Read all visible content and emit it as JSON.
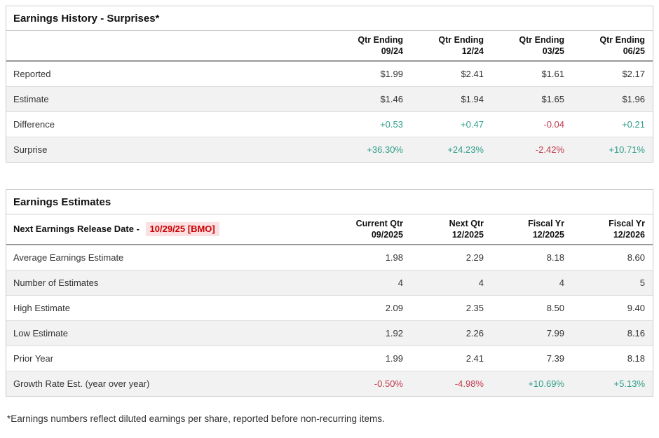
{
  "colors": {
    "positive": "#2f9e8a",
    "negative": "#c23b4f",
    "release_date_bg": "#fbe0e3",
    "release_date_color": "#cc0000",
    "border": "#cccccc",
    "zebra_row": "#f2f2f2",
    "header_rule": "#999999"
  },
  "history": {
    "title": "Earnings History - Surprises*",
    "columns": [
      {
        "line1": "Qtr Ending",
        "line2": "09/24"
      },
      {
        "line1": "Qtr Ending",
        "line2": "12/24"
      },
      {
        "line1": "Qtr Ending",
        "line2": "03/25"
      },
      {
        "line1": "Qtr Ending",
        "line2": "06/25"
      }
    ],
    "rows": [
      {
        "label": "Reported",
        "values": [
          {
            "text": "$1.99",
            "tone": "neutral"
          },
          {
            "text": "$2.41",
            "tone": "neutral"
          },
          {
            "text": "$1.61",
            "tone": "neutral"
          },
          {
            "text": "$2.17",
            "tone": "neutral"
          }
        ]
      },
      {
        "label": "Estimate",
        "values": [
          {
            "text": "$1.46",
            "tone": "neutral"
          },
          {
            "text": "$1.94",
            "tone": "neutral"
          },
          {
            "text": "$1.65",
            "tone": "neutral"
          },
          {
            "text": "$1.96",
            "tone": "neutral"
          }
        ]
      },
      {
        "label": "Difference",
        "values": [
          {
            "text": "+0.53",
            "tone": "pos"
          },
          {
            "text": "+0.47",
            "tone": "pos"
          },
          {
            "text": "-0.04",
            "tone": "neg"
          },
          {
            "text": "+0.21",
            "tone": "pos"
          }
        ]
      },
      {
        "label": "Surprise",
        "values": [
          {
            "text": "+36.30%",
            "tone": "pos"
          },
          {
            "text": "+24.23%",
            "tone": "pos"
          },
          {
            "text": "-2.42%",
            "tone": "neg"
          },
          {
            "text": "+10.71%",
            "tone": "pos"
          }
        ]
      }
    ]
  },
  "estimates": {
    "title": "Earnings Estimates",
    "release_label": "Next Earnings Release Date -",
    "release_date": "10/29/25 [BMO]",
    "columns": [
      {
        "line1": "Current Qtr",
        "line2": "09/2025"
      },
      {
        "line1": "Next Qtr",
        "line2": "12/2025"
      },
      {
        "line1": "Fiscal Yr",
        "line2": "12/2025"
      },
      {
        "line1": "Fiscal Yr",
        "line2": "12/2026"
      }
    ],
    "rows": [
      {
        "label": "Average Earnings Estimate",
        "values": [
          {
            "text": "1.98",
            "tone": "neutral"
          },
          {
            "text": "2.29",
            "tone": "neutral"
          },
          {
            "text": "8.18",
            "tone": "neutral"
          },
          {
            "text": "8.60",
            "tone": "neutral"
          }
        ]
      },
      {
        "label": "Number of Estimates",
        "values": [
          {
            "text": "4",
            "tone": "neutral"
          },
          {
            "text": "4",
            "tone": "neutral"
          },
          {
            "text": "4",
            "tone": "neutral"
          },
          {
            "text": "5",
            "tone": "neutral"
          }
        ]
      },
      {
        "label": "High Estimate",
        "values": [
          {
            "text": "2.09",
            "tone": "neutral"
          },
          {
            "text": "2.35",
            "tone": "neutral"
          },
          {
            "text": "8.50",
            "tone": "neutral"
          },
          {
            "text": "9.40",
            "tone": "neutral"
          }
        ]
      },
      {
        "label": "Low Estimate",
        "values": [
          {
            "text": "1.92",
            "tone": "neutral"
          },
          {
            "text": "2.26",
            "tone": "neutral"
          },
          {
            "text": "7.99",
            "tone": "neutral"
          },
          {
            "text": "8.16",
            "tone": "neutral"
          }
        ]
      },
      {
        "label": "Prior Year",
        "values": [
          {
            "text": "1.99",
            "tone": "neutral"
          },
          {
            "text": "2.41",
            "tone": "neutral"
          },
          {
            "text": "7.39",
            "tone": "neutral"
          },
          {
            "text": "8.18",
            "tone": "neutral"
          }
        ]
      },
      {
        "label": "Growth Rate Est. (year over year)",
        "values": [
          {
            "text": "-0.50%",
            "tone": "neg"
          },
          {
            "text": "-4.98%",
            "tone": "neg"
          },
          {
            "text": "+10.69%",
            "tone": "pos"
          },
          {
            "text": "+5.13%",
            "tone": "pos"
          }
        ]
      }
    ]
  },
  "footnote": "*Earnings numbers reflect diluted earnings per share, reported before non-recurring items."
}
